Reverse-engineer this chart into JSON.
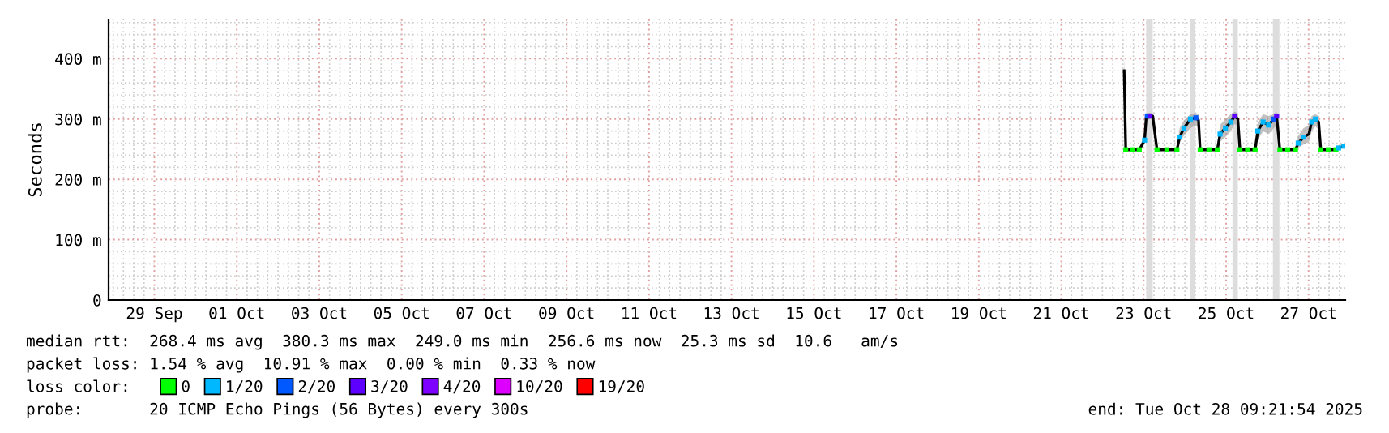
{
  "chart_data": {
    "type": "line",
    "ylabel": "Seconds",
    "xlim": [
      "2025-09-28T09:21",
      "2025-10-28T09:21"
    ],
    "xticks": [
      {
        "value": "2025-09-29T12:00",
        "label": "29 Sep"
      },
      {
        "value": "2025-10-01T12:00",
        "label": "01 Oct"
      },
      {
        "value": "2025-10-03T12:00",
        "label": "03 Oct"
      },
      {
        "value": "2025-10-05T12:00",
        "label": "05 Oct"
      },
      {
        "value": "2025-10-07T12:00",
        "label": "07 Oct"
      },
      {
        "value": "2025-10-09T12:00",
        "label": "09 Oct"
      },
      {
        "value": "2025-10-11T12:00",
        "label": "11 Oct"
      },
      {
        "value": "2025-10-13T12:00",
        "label": "13 Oct"
      },
      {
        "value": "2025-10-15T12:00",
        "label": "15 Oct"
      },
      {
        "value": "2025-10-17T12:00",
        "label": "17 Oct"
      },
      {
        "value": "2025-10-19T12:00",
        "label": "19 Oct"
      },
      {
        "value": "2025-10-21T12:00",
        "label": "21 Oct"
      },
      {
        "value": "2025-10-23T12:00",
        "label": "23 Oct"
      },
      {
        "value": "2025-10-25T12:00",
        "label": "25 Oct"
      },
      {
        "value": "2025-10-27T12:00",
        "label": "27 Oct"
      }
    ],
    "ylim": [
      0,
      465
    ],
    "yticks": [
      0,
      {
        "value": 100,
        "label": "100 m"
      },
      {
        "value": 200,
        "label": "200 m"
      },
      {
        "value": 300,
        "label": "300 m"
      },
      {
        "value": 400,
        "label": "400 m"
      }
    ],
    "grid": true,
    "legend": "bottom left",
    "series": [
      {
        "color": "#000000",
        "x": [
          "2025-10-23T00:38",
          "2025-10-23T01:34",
          "2025-10-23T09:25",
          "2025-10-23T12:33",
          "2025-10-23T13:29",
          "2025-10-23T14:07",
          "2025-10-23T15:41",
          "2025-10-23T17:15",
          "2025-10-23T19:46",
          "2025-10-24T07:22",
          "2025-10-24T08:56",
          "2025-10-24T11:27",
          "2025-10-24T15:13",
          "2025-10-24T18:21",
          "2025-10-24T19:55",
          "2025-10-24T20:52",
          "2025-10-25T06:54",
          "2025-10-25T08:28",
          "2025-10-25T11:36",
          "2025-10-25T14:44",
          "2025-10-25T16:56",
          "2025-10-25T18:49",
          "2025-10-25T20:04",
          "2025-10-26T04:51",
          "2025-10-26T06:25",
          "2025-10-26T09:33",
          "2025-10-26T12:42",
          "2025-10-26T15:50",
          "2025-10-26T17:24",
          "2025-10-26T19:17",
          "2025-10-27T04:23",
          "2025-10-27T05:57",
          "2025-10-27T09:05",
          "2025-10-27T12:13",
          "2025-10-27T13:47",
          "2025-10-27T15:59",
          "2025-10-27T17:52",
          "2025-10-27T19:07",
          "2025-10-28T03:54",
          "2025-10-28T05:28",
          "2025-10-28T08:36"
        ],
        "values": [
          380,
          249,
          249,
          265,
          303,
          305,
          305,
          305,
          249,
          249,
          270,
          285,
          300,
          302,
          298,
          249,
          249,
          275,
          285,
          295,
          305,
          300,
          249,
          249,
          280,
          295,
          290,
          300,
          305,
          249,
          249,
          260,
          270,
          275,
          295,
          300,
          295,
          249,
          249,
          252,
          255
        ],
        "lower": [
          380,
          248,
          248,
          258,
          290,
          298,
          300,
          298,
          248,
          248,
          262,
          272,
          285,
          290,
          285,
          248,
          248,
          262,
          270,
          280,
          292,
          288,
          248,
          248,
          265,
          280,
          275,
          285,
          292,
          248,
          248,
          252,
          258,
          262,
          280,
          288,
          282,
          248,
          248,
          250,
          252
        ],
        "upper": [
          410,
          252,
          252,
          275,
          310,
          310,
          310,
          310,
          252,
          252,
          285,
          298,
          308,
          310,
          308,
          252,
          252,
          290,
          300,
          308,
          312,
          310,
          252,
          252,
          295,
          308,
          305,
          308,
          312,
          252,
          252,
          272,
          285,
          290,
          305,
          308,
          305,
          252,
          252,
          256,
          260
        ]
      },
      {
        "type": "scatter",
        "name": "0",
        "color": "#00ff00",
        "x": [
          "2025-10-23T01:34",
          "2025-10-23T05:30",
          "2025-10-23T09:25",
          "2025-10-23T19:46",
          "2025-10-24T01:30",
          "2025-10-24T07:22",
          "2025-10-24T20:52",
          "2025-10-25T02:00",
          "2025-10-25T06:54",
          "2025-10-25T20:04",
          "2025-10-26T00:30",
          "2025-10-26T04:51",
          "2025-10-26T19:17",
          "2025-10-26T23:50",
          "2025-10-27T04:23",
          "2025-10-27T19:07",
          "2025-10-27T23:30",
          "2025-10-28T03:54"
        ],
        "values": [
          249,
          249,
          249,
          249,
          249,
          249,
          249,
          249,
          249,
          249,
          249,
          249,
          249,
          249,
          249,
          249,
          249,
          249
        ]
      },
      {
        "type": "scatter",
        "name": "1/20",
        "color": "#00b8ff",
        "x": [
          "2025-10-23T12:33",
          "2025-10-24T08:56",
          "2025-10-24T11:27",
          "2025-10-24T15:13",
          "2025-10-25T08:28",
          "2025-10-25T11:36",
          "2025-10-25T14:44",
          "2025-10-26T06:25",
          "2025-10-26T09:33",
          "2025-10-26T12:42",
          "2025-10-27T05:57",
          "2025-10-27T09:05",
          "2025-10-27T13:47",
          "2025-10-27T15:59",
          "2025-10-28T05:28",
          "2025-10-28T08:36"
        ],
        "values": [
          265,
          270,
          285,
          300,
          275,
          285,
          295,
          280,
          295,
          290,
          260,
          270,
          295,
          300,
          252,
          255
        ]
      },
      {
        "type": "scatter",
        "name": "2/20",
        "color": "#0059ff",
        "x": [
          "2025-10-23T14:07",
          "2025-10-24T18:21",
          "2025-10-26T15:50"
        ],
        "values": [
          305,
          302,
          300
        ]
      },
      {
        "type": "scatter",
        "name": "3/20",
        "color": "#5e00ff",
        "x": [
          "2025-10-23T15:41",
          "2025-10-25T16:56",
          "2025-10-26T17:24"
        ],
        "values": [
          305,
          305,
          305
        ]
      },
      {
        "type": "scatter",
        "name": "4/20",
        "color": "#7e00ff"
      },
      {
        "type": "scatter",
        "name": "10/20",
        "color": "#dd00ff"
      },
      {
        "type": "scatter",
        "name": "19/20",
        "color": "#ff0000"
      }
    ],
    "bands": [
      {
        "axis": "x",
        "from": "2025-10-23T13:29",
        "to": "2025-10-23T17:15",
        "color": "#dddddd"
      },
      {
        "axis": "x",
        "from": "2025-10-24T15:13",
        "to": "2025-10-24T17:44",
        "color": "#dddddd"
      },
      {
        "axis": "x",
        "from": "2025-10-25T15:41",
        "to": "2025-10-25T18:49",
        "color": "#dddddd"
      },
      {
        "axis": "x",
        "from": "2025-10-26T15:13",
        "to": "2025-10-26T19:00",
        "color": "#dddddd"
      }
    ],
    "annotations": [
      "median rtt:  268.4 ms avg  380.3 ms max  249.0 ms min  256.6 ms now  25.3 ms sd  10.6   am/s",
      "packet loss: 1.54 % avg  10.91 % max  0.00 % min  0.33 % now",
      "loss color:",
      "probe:       20 ICMP Echo Pings (56 Bytes) every 300s",
      "end: Tue Oct 28 09:21:54 2025"
    ]
  }
}
